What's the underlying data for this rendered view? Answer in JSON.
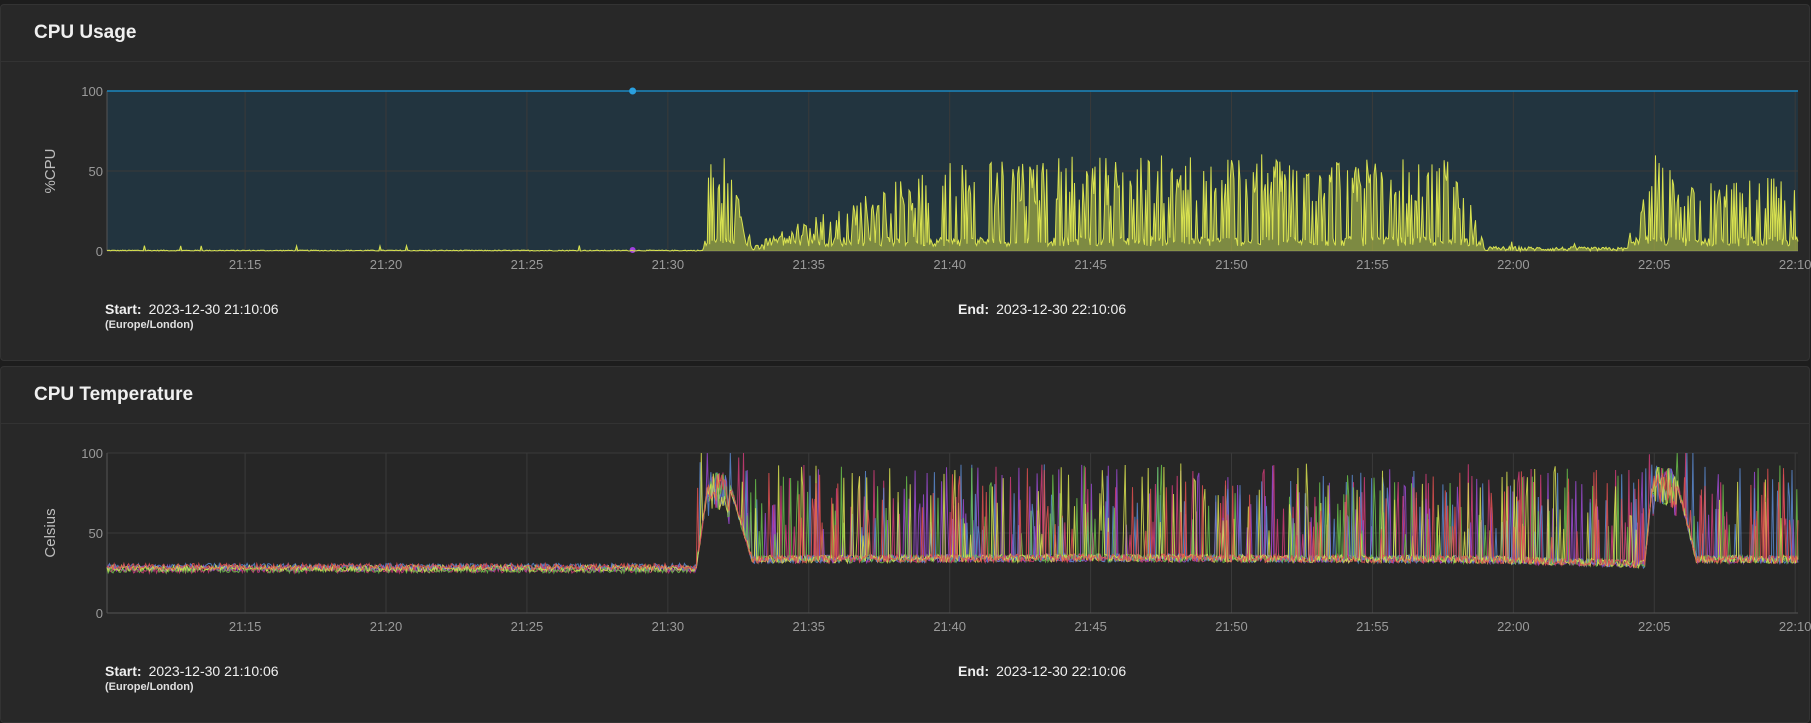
{
  "colors": {
    "panel": "#282828",
    "threshold_fill": "#22343f",
    "threshold_line": "#1b87c0",
    "usage_line": "#d9e250",
    "usage_peak": "#e05050",
    "temp_series": [
      "#d03c78",
      "#9a4ad0",
      "#5a8ad0",
      "#6ac04a",
      "#d9e250",
      "#e05050"
    ]
  },
  "panels": [
    {
      "title": "CPU Usage",
      "start_label": "Start:",
      "start_value": "2023-12-30 21:10:06",
      "timezone": "(Europe/London)",
      "end_label": "End:",
      "end_value": "2023-12-30 22:10:06"
    },
    {
      "title": "CPU Temperature",
      "start_label": "Start:",
      "start_value": "2023-12-30 21:10:06",
      "timezone": "(Europe/London)",
      "end_label": "End:",
      "end_value": "2023-12-30 22:10:06"
    }
  ],
  "chart_data": [
    {
      "type": "area",
      "ylabel": "%CPU",
      "xlabel": "",
      "ylim": [
        0,
        100
      ],
      "yticks": [
        0,
        50,
        100
      ],
      "xlim": [
        "21:10:06",
        "22:10:06"
      ],
      "xticks": [
        "21:15",
        "21:20",
        "21:25",
        "21:30",
        "21:35",
        "21:40",
        "21:45",
        "21:50",
        "21:55",
        "22:00",
        "22:05",
        "22:10"
      ],
      "threshold": {
        "value": 100,
        "marker_time": "21:28:45"
      },
      "series": [
        {
          "x": [
            "21:10:06",
            "21:31:15",
            "21:31:30",
            "21:32:00",
            "21:33:00",
            "21:40:00",
            "21:50:00",
            "21:58:00",
            "21:59:00",
            "22:03:30",
            "22:04:00",
            "22:05:00",
            "22:05:30",
            "22:06:00",
            "22:10:06"
          ],
          "values": [
            1,
            1,
            58,
            60,
            5,
            55,
            58,
            55,
            5,
            4,
            4,
            60,
            58,
            40,
            45
          ]
        }
      ]
    },
    {
      "type": "line",
      "ylabel": "Celsius",
      "xlabel": "",
      "ylim": [
        0,
        100
      ],
      "yticks": [
        0,
        50,
        100
      ],
      "xlim": [
        "21:10:06",
        "22:10:06"
      ],
      "xticks": [
        "21:15",
        "21:20",
        "21:25",
        "21:30",
        "21:35",
        "21:40",
        "21:45",
        "21:50",
        "21:55",
        "22:00",
        "22:05",
        "22:10"
      ],
      "series": [
        {
          "x": [
            "21:10:06",
            "21:20:00",
            "21:31:00",
            "21:31:30",
            "21:32:00",
            "21:33:00",
            "21:45:00",
            "21:59:00",
            "22:03:00",
            "22:04:40",
            "22:05:00",
            "22:05:40",
            "22:06:30",
            "22:10:06"
          ],
          "values": [
            28,
            28,
            28,
            88,
            90,
            33,
            34,
            33,
            31,
            30,
            93,
            90,
            33,
            33
          ]
        }
      ]
    }
  ]
}
